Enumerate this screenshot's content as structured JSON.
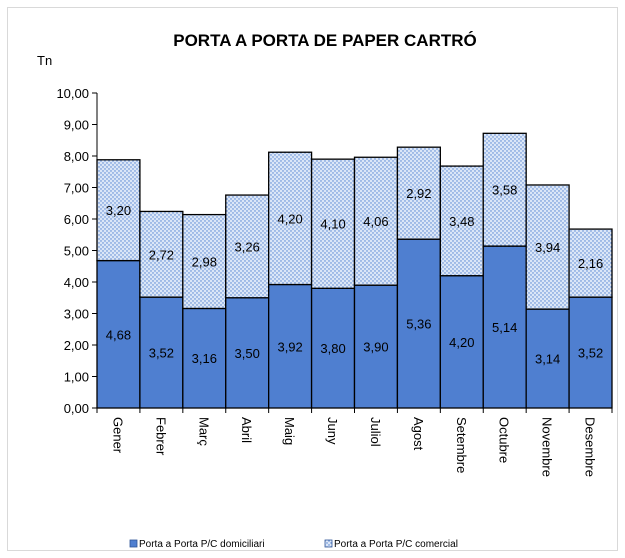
{
  "chart_data": {
    "type": "bar",
    "stacked": true,
    "title": "PORTA A PORTA DE PAPER CARTRÓ",
    "ylabel": "Tn",
    "xlabel": "",
    "ylim": [
      0,
      10
    ],
    "yticks": [
      "0,00",
      "1,00",
      "2,00",
      "3,00",
      "4,00",
      "5,00",
      "6,00",
      "7,00",
      "8,00",
      "9,00",
      "10,00"
    ],
    "categories": [
      "Gener",
      "Febrer",
      "Març",
      "Abril",
      "Maig",
      "Juny",
      "Juliol",
      "Agost",
      "Setembre",
      "Octubre",
      "Novembre",
      "Desembre"
    ],
    "series": [
      {
        "name": "Porta a Porta P/C domiciliari",
        "values": [
          4.68,
          3.52,
          3.16,
          3.5,
          3.92,
          3.8,
          3.9,
          5.36,
          4.2,
          5.14,
          3.14,
          3.52
        ],
        "labels": [
          "4,68",
          "3,52",
          "3,16",
          "3,50",
          "3,92",
          "3,80",
          "3,90",
          "5,36",
          "4,20",
          "5,14",
          "3,14",
          "3,52"
        ],
        "color": "#4f7fd0"
      },
      {
        "name": "Porta a Porta P/C comercial",
        "values": [
          3.2,
          2.72,
          2.98,
          3.26,
          4.2,
          4.1,
          4.06,
          2.92,
          3.48,
          3.58,
          3.94,
          2.16
        ],
        "labels": [
          "3,20",
          "2,72",
          "2,98",
          "3,26",
          "4,20",
          "4,10",
          "4,06",
          "2,92",
          "3,48",
          "3,58",
          "3,94",
          "2,16"
        ],
        "color": "#c5d7f2",
        "pattern": "dotted"
      }
    ],
    "grid": false,
    "legend": "bottom"
  }
}
